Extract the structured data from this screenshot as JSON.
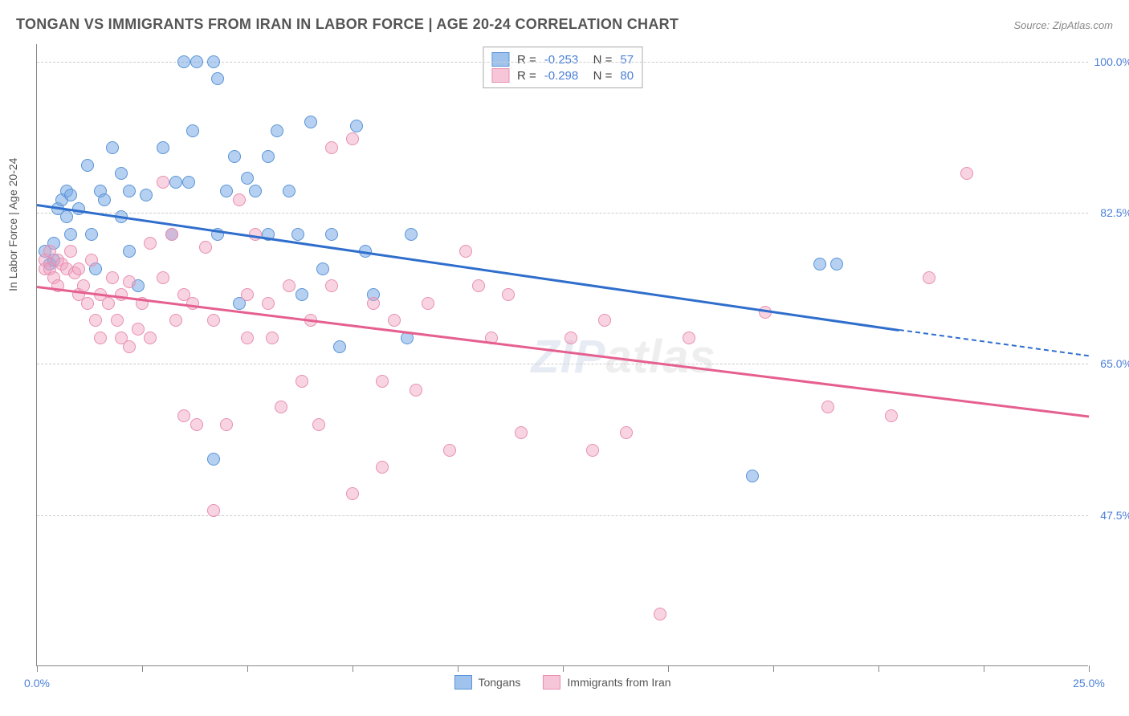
{
  "title": "TONGAN VS IMMIGRANTS FROM IRAN IN LABOR FORCE | AGE 20-24 CORRELATION CHART",
  "source": "Source: ZipAtlas.com",
  "ylabel": "In Labor Force | Age 20-24",
  "watermark_a": "ZIP",
  "watermark_b": "atlas",
  "chart": {
    "type": "scatter",
    "xlim": [
      0,
      25
    ],
    "ylim": [
      30,
      102
    ],
    "yticks": [
      47.5,
      65.0,
      82.5,
      100.0
    ],
    "ytick_labels": [
      "47.5%",
      "65.0%",
      "82.5%",
      "100.0%"
    ],
    "xticks": [
      0,
      2.5,
      5,
      7.5,
      10,
      12.5,
      15,
      17.5,
      20,
      22.5,
      25
    ],
    "xmin_label": "0.0%",
    "xmax_label": "25.0%",
    "series": [
      {
        "name": "Tongans",
        "color_fill": "rgba(120,170,230,0.55)",
        "color_stroke": "#5a94d6",
        "reg_color": "#2f6ecc",
        "R": "-0.253",
        "N": "57",
        "reg_start": [
          0,
          83.5
        ],
        "reg_end_solid": [
          20.5,
          69
        ],
        "reg_end_dash": [
          25,
          66
        ],
        "points": [
          [
            0.2,
            78
          ],
          [
            0.3,
            76.5
          ],
          [
            0.4,
            79
          ],
          [
            0.4,
            77
          ],
          [
            0.5,
            83
          ],
          [
            0.6,
            84
          ],
          [
            0.7,
            82
          ],
          [
            0.7,
            85
          ],
          [
            0.8,
            84.5
          ],
          [
            0.8,
            80
          ],
          [
            1.0,
            83
          ],
          [
            1.2,
            88
          ],
          [
            1.3,
            80
          ],
          [
            1.4,
            76
          ],
          [
            1.5,
            85
          ],
          [
            1.6,
            84
          ],
          [
            1.8,
            90
          ],
          [
            2.0,
            87
          ],
          [
            2.0,
            82
          ],
          [
            2.2,
            85
          ],
          [
            2.2,
            78
          ],
          [
            2.4,
            74
          ],
          [
            2.6,
            84.5
          ],
          [
            3.0,
            90
          ],
          [
            3.2,
            80
          ],
          [
            3.3,
            86
          ],
          [
            3.5,
            100
          ],
          [
            3.6,
            86
          ],
          [
            3.7,
            92
          ],
          [
            3.8,
            100
          ],
          [
            4.2,
            100
          ],
          [
            4.2,
            54
          ],
          [
            4.3,
            80
          ],
          [
            4.3,
            98
          ],
          [
            4.5,
            85
          ],
          [
            4.7,
            89
          ],
          [
            4.8,
            72
          ],
          [
            5.0,
            86.5
          ],
          [
            5.2,
            85
          ],
          [
            5.5,
            89
          ],
          [
            5.5,
            80
          ],
          [
            5.7,
            92
          ],
          [
            6.0,
            85
          ],
          [
            6.2,
            80
          ],
          [
            6.3,
            73
          ],
          [
            6.5,
            93
          ],
          [
            6.8,
            76
          ],
          [
            7.0,
            80
          ],
          [
            7.2,
            67
          ],
          [
            7.6,
            92.5
          ],
          [
            7.8,
            78
          ],
          [
            8.0,
            73
          ],
          [
            8.8,
            68
          ],
          [
            8.9,
            80
          ],
          [
            17.0,
            52
          ],
          [
            18.6,
            76.5
          ],
          [
            19,
            76.5
          ]
        ]
      },
      {
        "name": "Immigrants from Iran",
        "color_fill": "rgba(240,160,190,0.45)",
        "color_stroke": "#e88fb0",
        "reg_color": "#e55f8f",
        "R": "-0.298",
        "N": "80",
        "reg_start": [
          0,
          74
        ],
        "reg_end_solid": [
          25,
          59
        ],
        "reg_end_dash": null,
        "points": [
          [
            0.2,
            76
          ],
          [
            0.2,
            77
          ],
          [
            0.3,
            78
          ],
          [
            0.3,
            76
          ],
          [
            0.4,
            75
          ],
          [
            0.5,
            77
          ],
          [
            0.5,
            74
          ],
          [
            0.6,
            76.5
          ],
          [
            0.7,
            76
          ],
          [
            0.8,
            78
          ],
          [
            0.9,
            75.5
          ],
          [
            1.0,
            73
          ],
          [
            1.0,
            76
          ],
          [
            1.1,
            74
          ],
          [
            1.2,
            72
          ],
          [
            1.3,
            77
          ],
          [
            1.4,
            70
          ],
          [
            1.5,
            73
          ],
          [
            1.5,
            68
          ],
          [
            1.7,
            72
          ],
          [
            1.8,
            75
          ],
          [
            1.9,
            70
          ],
          [
            2.0,
            73
          ],
          [
            2.0,
            68
          ],
          [
            2.2,
            67
          ],
          [
            2.2,
            74.5
          ],
          [
            2.4,
            69
          ],
          [
            2.5,
            72
          ],
          [
            2.7,
            79
          ],
          [
            2.7,
            68
          ],
          [
            3.0,
            86
          ],
          [
            3.0,
            75
          ],
          [
            3.2,
            80
          ],
          [
            3.3,
            70
          ],
          [
            3.5,
            73
          ],
          [
            3.5,
            59
          ],
          [
            3.7,
            72
          ],
          [
            3.8,
            58
          ],
          [
            4.0,
            78.5
          ],
          [
            4.2,
            70
          ],
          [
            4.2,
            48
          ],
          [
            4.5,
            58
          ],
          [
            4.8,
            84
          ],
          [
            5.0,
            73
          ],
          [
            5.0,
            68
          ],
          [
            5.2,
            80
          ],
          [
            5.5,
            72
          ],
          [
            5.6,
            68
          ],
          [
            5.8,
            60
          ],
          [
            6.0,
            74
          ],
          [
            6.3,
            63
          ],
          [
            6.5,
            70
          ],
          [
            6.7,
            58
          ],
          [
            7.0,
            74
          ],
          [
            7.0,
            90
          ],
          [
            7.5,
            91
          ],
          [
            7.5,
            50
          ],
          [
            8.0,
            72
          ],
          [
            8.2,
            63
          ],
          [
            8.2,
            53
          ],
          [
            8.5,
            70
          ],
          [
            9.0,
            62
          ],
          [
            9.3,
            72
          ],
          [
            9.8,
            55
          ],
          [
            10.2,
            78
          ],
          [
            10.5,
            74
          ],
          [
            10.8,
            68
          ],
          [
            11.2,
            73
          ],
          [
            11.5,
            57
          ],
          [
            12.7,
            68
          ],
          [
            13.2,
            55
          ],
          [
            13.5,
            70
          ],
          [
            14.0,
            57
          ],
          [
            14.8,
            36
          ],
          [
            15.5,
            68
          ],
          [
            17.3,
            71
          ],
          [
            18.8,
            60
          ],
          [
            20.3,
            59
          ],
          [
            21.2,
            75
          ],
          [
            22.1,
            87
          ]
        ]
      }
    ],
    "marker_size": 16,
    "background_color": "#ffffff",
    "grid_color": "#cccccc",
    "tick_label_color": "#4a7fd8",
    "title_fontsize": 18,
    "label_fontsize": 14
  }
}
